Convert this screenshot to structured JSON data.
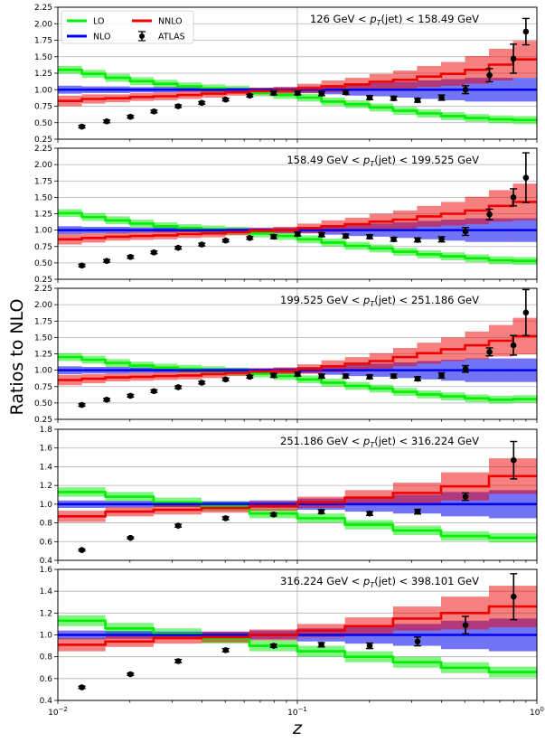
{
  "chart_data": {
    "type": "step",
    "ylabel": "Ratios to NLO",
    "xlabel": "z",
    "x_scale": "log",
    "xlim": [
      0.01,
      1.0
    ],
    "x_ticks": [
      {
        "value": 0.01,
        "base": "10",
        "exp": "−2"
      },
      {
        "value": 0.1,
        "base": "10",
        "exp": "−1"
      },
      {
        "value": 1.0,
        "base": "10",
        "exp": "0"
      }
    ],
    "legend": {
      "position": "top-left",
      "entries": [
        {
          "label": "LO",
          "color": "#00ee00",
          "kind": "line"
        },
        {
          "label": "NLO",
          "color": "#0000ee",
          "kind": "line"
        },
        {
          "label": "NNLO",
          "color": "#ee0000",
          "kind": "line"
        },
        {
          "label": "ATLAS",
          "color": "#000000",
          "kind": "errorbar"
        }
      ]
    },
    "colors": {
      "LO": "#00ee00",
      "NLO": "#0000ee",
      "NNLO": "#ee0000",
      "ATLAS": "#000000"
    },
    "bin_edges": [
      0.01,
      0.0126,
      0.0158,
      0.02,
      0.0251,
      0.0316,
      0.0398,
      0.0501,
      0.0631,
      0.0794,
      0.1,
      0.126,
      0.158,
      0.2,
      0.251,
      0.316,
      0.398,
      0.501,
      0.631,
      0.794,
      1.0
    ],
    "panels": [
      {
        "label_pre": "126 GeV < ",
        "label_post": "(jet) < 158.49 GeV",
        "ylim": [
          0.25,
          2.25
        ],
        "yticks": [
          "0.25",
          "0.50",
          "0.75",
          "1.00",
          "1.25",
          "1.50",
          "1.75",
          "2.00",
          "2.25"
        ],
        "lo": [
          1.3,
          1.24,
          1.18,
          1.13,
          1.09,
          1.05,
          1.02,
          1.0,
          0.96,
          0.92,
          0.88,
          0.82,
          0.78,
          0.73,
          0.68,
          0.64,
          0.6,
          0.57,
          0.55,
          0.54
        ],
        "lo_band": 0.06,
        "nlo_band": [
          0.06,
          0.05,
          0.05,
          0.04,
          0.04,
          0.03,
          0.03,
          0.03,
          0.03,
          0.04,
          0.05,
          0.07,
          0.09,
          0.1,
          0.12,
          0.14,
          0.16,
          0.18,
          0.18,
          0.18
        ],
        "nnlo": [
          0.83,
          0.86,
          0.87,
          0.89,
          0.9,
          0.92,
          0.94,
          0.96,
          0.98,
          0.99,
          1.02,
          1.05,
          1.08,
          1.12,
          1.15,
          1.2,
          1.24,
          1.3,
          1.38,
          1.46
        ],
        "nnlo_band": [
          0.08,
          0.07,
          0.06,
          0.06,
          0.06,
          0.06,
          0.06,
          0.05,
          0.05,
          0.05,
          0.07,
          0.09,
          0.1,
          0.12,
          0.14,
          0.16,
          0.18,
          0.21,
          0.24,
          0.28
        ],
        "atlas_x": [
          0.0126,
          0.016,
          0.0201,
          0.0252,
          0.0318,
          0.0399,
          0.0502,
          0.0633,
          0.0796,
          0.1003,
          0.1263,
          0.1592,
          0.2004,
          0.2524,
          0.3177,
          0.4,
          0.5036,
          0.6341,
          0.7983,
          0.9
        ],
        "atlas_y": [
          0.44,
          0.52,
          0.59,
          0.67,
          0.75,
          0.8,
          0.85,
          0.91,
          0.95,
          0.95,
          0.94,
          0.96,
          0.88,
          0.87,
          0.84,
          0.88,
          1.0,
          1.22,
          1.47,
          1.88
        ],
        "atlas_err": [
          0.02,
          0.02,
          0.02,
          0.02,
          0.02,
          0.02,
          0.02,
          0.02,
          0.03,
          0.03,
          0.03,
          0.03,
          0.03,
          0.03,
          0.03,
          0.04,
          0.06,
          0.1,
          0.22,
          0.2
        ]
      },
      {
        "label_pre": "158.49 GeV < ",
        "label_post": "(jet) < 199.525 GeV",
        "ylim": [
          0.25,
          2.25
        ],
        "yticks": [
          "0.25",
          "0.50",
          "0.75",
          "1.00",
          "1.25",
          "1.50",
          "1.75",
          "2.00",
          "2.25"
        ],
        "lo": [
          1.26,
          1.2,
          1.15,
          1.1,
          1.06,
          1.03,
          1.01,
          0.99,
          0.95,
          0.91,
          0.86,
          0.81,
          0.76,
          0.72,
          0.67,
          0.63,
          0.6,
          0.57,
          0.54,
          0.53
        ],
        "lo_band": 0.06,
        "nlo_band": [
          0.06,
          0.05,
          0.05,
          0.04,
          0.04,
          0.03,
          0.03,
          0.03,
          0.03,
          0.04,
          0.05,
          0.07,
          0.09,
          0.1,
          0.12,
          0.14,
          0.16,
          0.18,
          0.18,
          0.18
        ],
        "nnlo": [
          0.86,
          0.88,
          0.9,
          0.91,
          0.92,
          0.94,
          0.95,
          0.97,
          0.99,
          1.0,
          1.03,
          1.06,
          1.09,
          1.13,
          1.16,
          1.21,
          1.25,
          1.3,
          1.37,
          1.43
        ],
        "nnlo_band": [
          0.08,
          0.07,
          0.06,
          0.06,
          0.06,
          0.06,
          0.06,
          0.05,
          0.05,
          0.05,
          0.07,
          0.09,
          0.1,
          0.12,
          0.14,
          0.16,
          0.18,
          0.21,
          0.24,
          0.28
        ],
        "atlas_x": [
          0.0126,
          0.016,
          0.0201,
          0.0252,
          0.0318,
          0.0399,
          0.0502,
          0.0633,
          0.0796,
          0.1003,
          0.1263,
          0.1592,
          0.2004,
          0.2524,
          0.3177,
          0.4,
          0.5036,
          0.6341,
          0.7983,
          0.9
        ],
        "atlas_y": [
          0.46,
          0.53,
          0.59,
          0.66,
          0.73,
          0.78,
          0.84,
          0.88,
          0.9,
          0.94,
          0.93,
          0.91,
          0.9,
          0.86,
          0.85,
          0.86,
          0.98,
          1.24,
          1.5,
          1.8
        ],
        "atlas_err": [
          0.02,
          0.02,
          0.02,
          0.02,
          0.02,
          0.02,
          0.02,
          0.02,
          0.03,
          0.03,
          0.03,
          0.03,
          0.03,
          0.03,
          0.03,
          0.04,
          0.06,
          0.08,
          0.13,
          0.38
        ]
      },
      {
        "label_pre": "199.525 GeV < ",
        "label_post": "(jet) < 251.186 GeV",
        "ylim": [
          0.25,
          2.25
        ],
        "yticks": [
          "0.25",
          "0.50",
          "0.75",
          "1.00",
          "1.25",
          "1.50",
          "1.75",
          "2.00",
          "2.25"
        ],
        "lo": [
          1.2,
          1.16,
          1.11,
          1.07,
          1.04,
          1.02,
          1.0,
          0.98,
          0.95,
          0.91,
          0.86,
          0.81,
          0.76,
          0.72,
          0.67,
          0.63,
          0.6,
          0.57,
          0.55,
          0.56
        ],
        "lo_band": 0.06,
        "nlo_band": [
          0.06,
          0.05,
          0.05,
          0.04,
          0.04,
          0.03,
          0.03,
          0.03,
          0.03,
          0.04,
          0.05,
          0.07,
          0.09,
          0.1,
          0.12,
          0.14,
          0.16,
          0.18,
          0.18,
          0.18
        ],
        "nnlo": [
          0.85,
          0.87,
          0.89,
          0.9,
          0.91,
          0.92,
          0.94,
          0.96,
          0.98,
          0.99,
          1.02,
          1.06,
          1.1,
          1.14,
          1.2,
          1.26,
          1.32,
          1.38,
          1.45,
          1.52
        ],
        "nnlo_band": [
          0.08,
          0.07,
          0.06,
          0.06,
          0.06,
          0.06,
          0.06,
          0.05,
          0.05,
          0.05,
          0.07,
          0.09,
          0.1,
          0.12,
          0.14,
          0.16,
          0.18,
          0.21,
          0.24,
          0.28
        ],
        "atlas_x": [
          0.0126,
          0.016,
          0.0201,
          0.0252,
          0.0318,
          0.0399,
          0.0502,
          0.0633,
          0.0796,
          0.1003,
          0.1263,
          0.1592,
          0.2004,
          0.2524,
          0.3177,
          0.4,
          0.5036,
          0.6341,
          0.7983,
          0.9
        ],
        "atlas_y": [
          0.47,
          0.55,
          0.61,
          0.68,
          0.74,
          0.81,
          0.86,
          0.9,
          0.92,
          0.94,
          0.91,
          0.91,
          0.9,
          0.91,
          0.87,
          0.92,
          1.02,
          1.28,
          1.38,
          1.88
        ],
        "atlas_err": [
          0.02,
          0.02,
          0.02,
          0.02,
          0.02,
          0.02,
          0.02,
          0.02,
          0.03,
          0.03,
          0.03,
          0.03,
          0.03,
          0.03,
          0.03,
          0.04,
          0.05,
          0.06,
          0.15,
          0.35
        ]
      },
      {
        "label_pre": "251.186 GeV < ",
        "label_post": "(jet) < 316.224 GeV",
        "ylim": [
          0.4,
          1.8
        ],
        "yticks": [
          "0.4",
          "0.6",
          "0.8",
          "1.0",
          "1.2",
          "1.4",
          "1.6",
          "1.8"
        ],
        "bin_edges": [
          0.01,
          0.0158,
          0.0251,
          0.0398,
          0.0631,
          0.1,
          0.158,
          0.251,
          0.398,
          0.631,
          1.0
        ],
        "lo": [
          1.13,
          1.08,
          1.02,
          0.98,
          0.9,
          0.85,
          0.78,
          0.72,
          0.66,
          0.64
        ],
        "lo_band": 0.05,
        "nlo_band": [
          0.04,
          0.035,
          0.03,
          0.03,
          0.04,
          0.06,
          0.08,
          0.1,
          0.13,
          0.15
        ],
        "nnlo": [
          0.87,
          0.92,
          0.94,
          0.96,
          0.98,
          1.02,
          1.07,
          1.12,
          1.19,
          1.3
        ],
        "nnlo_band": [
          0.06,
          0.05,
          0.05,
          0.05,
          0.05,
          0.06,
          0.08,
          0.11,
          0.15,
          0.19
        ],
        "atlas_x": [
          0.0126,
          0.0201,
          0.0318,
          0.0502,
          0.0796,
          0.126,
          0.2004,
          0.3177,
          0.5036,
          0.8
        ],
        "atlas_y": [
          0.51,
          0.64,
          0.77,
          0.85,
          0.89,
          0.92,
          0.9,
          0.92,
          1.08,
          1.47
        ],
        "atlas_err": [
          0.01,
          0.01,
          0.015,
          0.015,
          0.015,
          0.02,
          0.02,
          0.025,
          0.04,
          0.2
        ]
      },
      {
        "label_pre": "316.224 GeV < ",
        "label_post": "(jet) < 398.101 GeV",
        "ylim": [
          0.4,
          1.6
        ],
        "yticks": [
          "0.4",
          "0.6",
          "0.8",
          "1.0",
          "1.2",
          "1.4",
          "1.6"
        ],
        "bin_edges": [
          0.01,
          0.0158,
          0.0251,
          0.0398,
          0.0631,
          0.1,
          0.158,
          0.251,
          0.398,
          0.631,
          1.0
        ],
        "lo": [
          1.13,
          1.06,
          1.01,
          0.97,
          0.9,
          0.85,
          0.8,
          0.75,
          0.7,
          0.66
        ],
        "lo_band": 0.05,
        "nlo_band": [
          0.04,
          0.035,
          0.03,
          0.03,
          0.04,
          0.06,
          0.08,
          0.1,
          0.13,
          0.15
        ],
        "nnlo": [
          0.91,
          0.94,
          0.97,
          0.98,
          1.0,
          1.04,
          1.08,
          1.15,
          1.2,
          1.26
        ],
        "nnlo_band": [
          0.06,
          0.05,
          0.05,
          0.05,
          0.05,
          0.06,
          0.08,
          0.11,
          0.15,
          0.19
        ],
        "atlas_x": [
          0.0126,
          0.0201,
          0.0318,
          0.0502,
          0.0796,
          0.126,
          0.2004,
          0.3177,
          0.5036,
          0.8
        ],
        "atlas_y": [
          0.52,
          0.64,
          0.76,
          0.86,
          0.9,
          0.91,
          0.9,
          0.94,
          1.09,
          1.35
        ],
        "atlas_err": [
          0.01,
          0.01,
          0.015,
          0.015,
          0.015,
          0.02,
          0.025,
          0.04,
          0.08,
          0.21
        ]
      }
    ]
  }
}
